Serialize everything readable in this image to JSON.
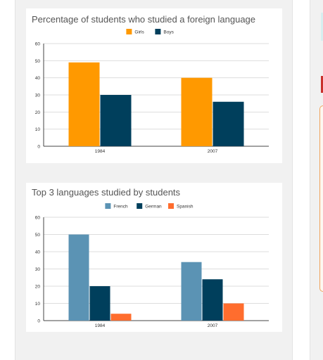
{
  "colors": {
    "girls": "#ff9900",
    "boys": "#003f5c",
    "french": "#5b93b4",
    "german": "#003f5c",
    "spanish": "#ff6d2e",
    "grid": "#dddddd",
    "axis": "#444444",
    "tick_text": "#333333"
  },
  "chart_data": [
    {
      "type": "bar",
      "title": "Percentage of students who studied a foreign language",
      "categories": [
        "1984",
        "2007"
      ],
      "series": [
        {
          "name": "Girls",
          "values": [
            49,
            40
          ]
        },
        {
          "name": "Boys",
          "values": [
            30,
            26
          ]
        }
      ],
      "ylim": [
        0,
        60
      ],
      "yticks": [
        "0",
        "10",
        "20",
        "30",
        "40",
        "50",
        "60"
      ],
      "grid": true,
      "legend": "top-center"
    },
    {
      "type": "bar",
      "title": "Top 3 languages studied by students",
      "categories": [
        "1984",
        "2007"
      ],
      "series": [
        {
          "name": "French",
          "values": [
            50,
            34
          ]
        },
        {
          "name": "German",
          "values": [
            20,
            24
          ]
        },
        {
          "name": "Spanish",
          "values": [
            4,
            10
          ]
        }
      ],
      "ylim": [
        0,
        60
      ],
      "yticks": [
        "0",
        "10",
        "20",
        "30",
        "40",
        "50",
        "60"
      ],
      "grid": true,
      "legend": "top-center"
    }
  ]
}
